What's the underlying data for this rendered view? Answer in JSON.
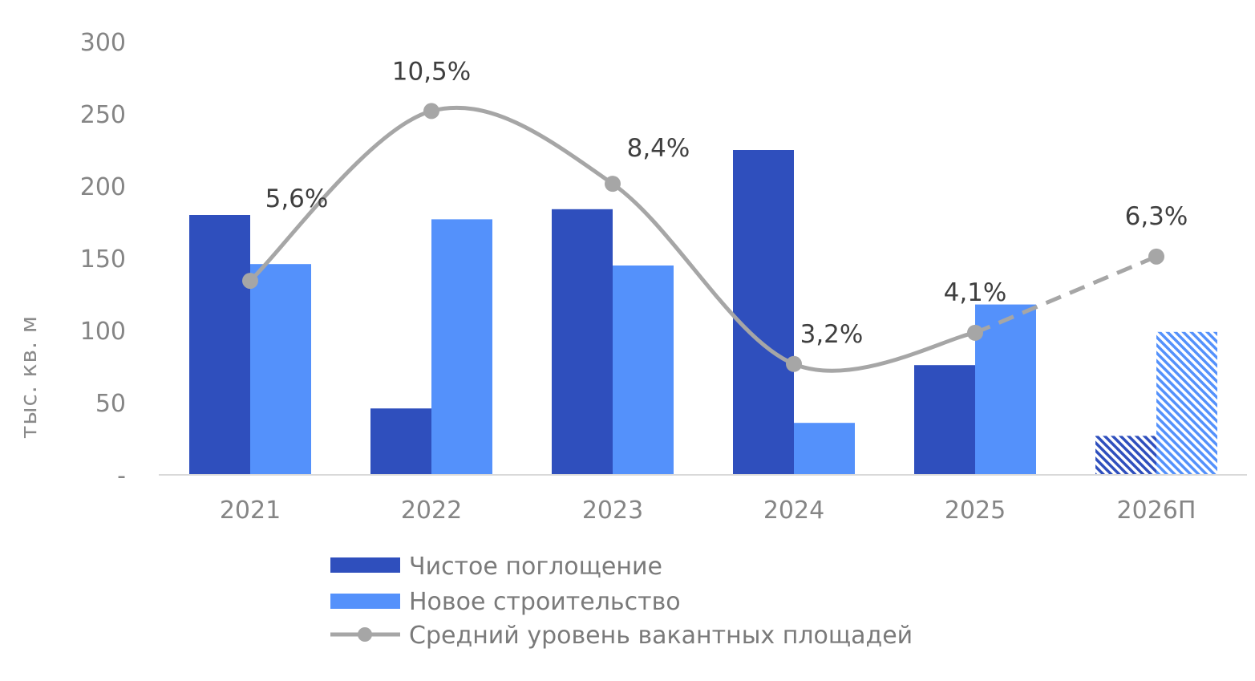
{
  "chart_data": {
    "type": "bar",
    "categories": [
      "2021",
      "2022",
      "2023",
      "2024",
      "2025",
      "2026П"
    ],
    "ylabel": "тыс. кв. м",
    "ylim": [
      0,
      300
    ],
    "yticks": [
      0,
      50,
      100,
      150,
      200,
      250,
      300
    ],
    "ytick_labels": [
      "-",
      "50",
      "100",
      "150",
      "200",
      "250",
      "300"
    ],
    "series": [
      {
        "name": "Чистое поглощение",
        "type": "bar",
        "values": [
          180,
          46,
          184,
          225,
          76,
          27
        ],
        "color": "#2f4fbd"
      },
      {
        "name": "Новое строительство",
        "type": "bar",
        "values": [
          146,
          177,
          145,
          36,
          118,
          99
        ],
        "color": "#5491fb"
      },
      {
        "name": "Средний уровень вакантных площадей",
        "type": "line",
        "values": [
          5.6,
          10.5,
          8.4,
          3.2,
          4.1,
          6.3
        ],
        "labels": [
          "5,6%",
          "10,5%",
          "8,4%",
          "3,2%",
          "4,1%",
          "6,3%"
        ],
        "color": "#a6a6a6"
      }
    ],
    "forecast_category": "2026П",
    "grid": false,
    "legend_position": "bottom"
  }
}
